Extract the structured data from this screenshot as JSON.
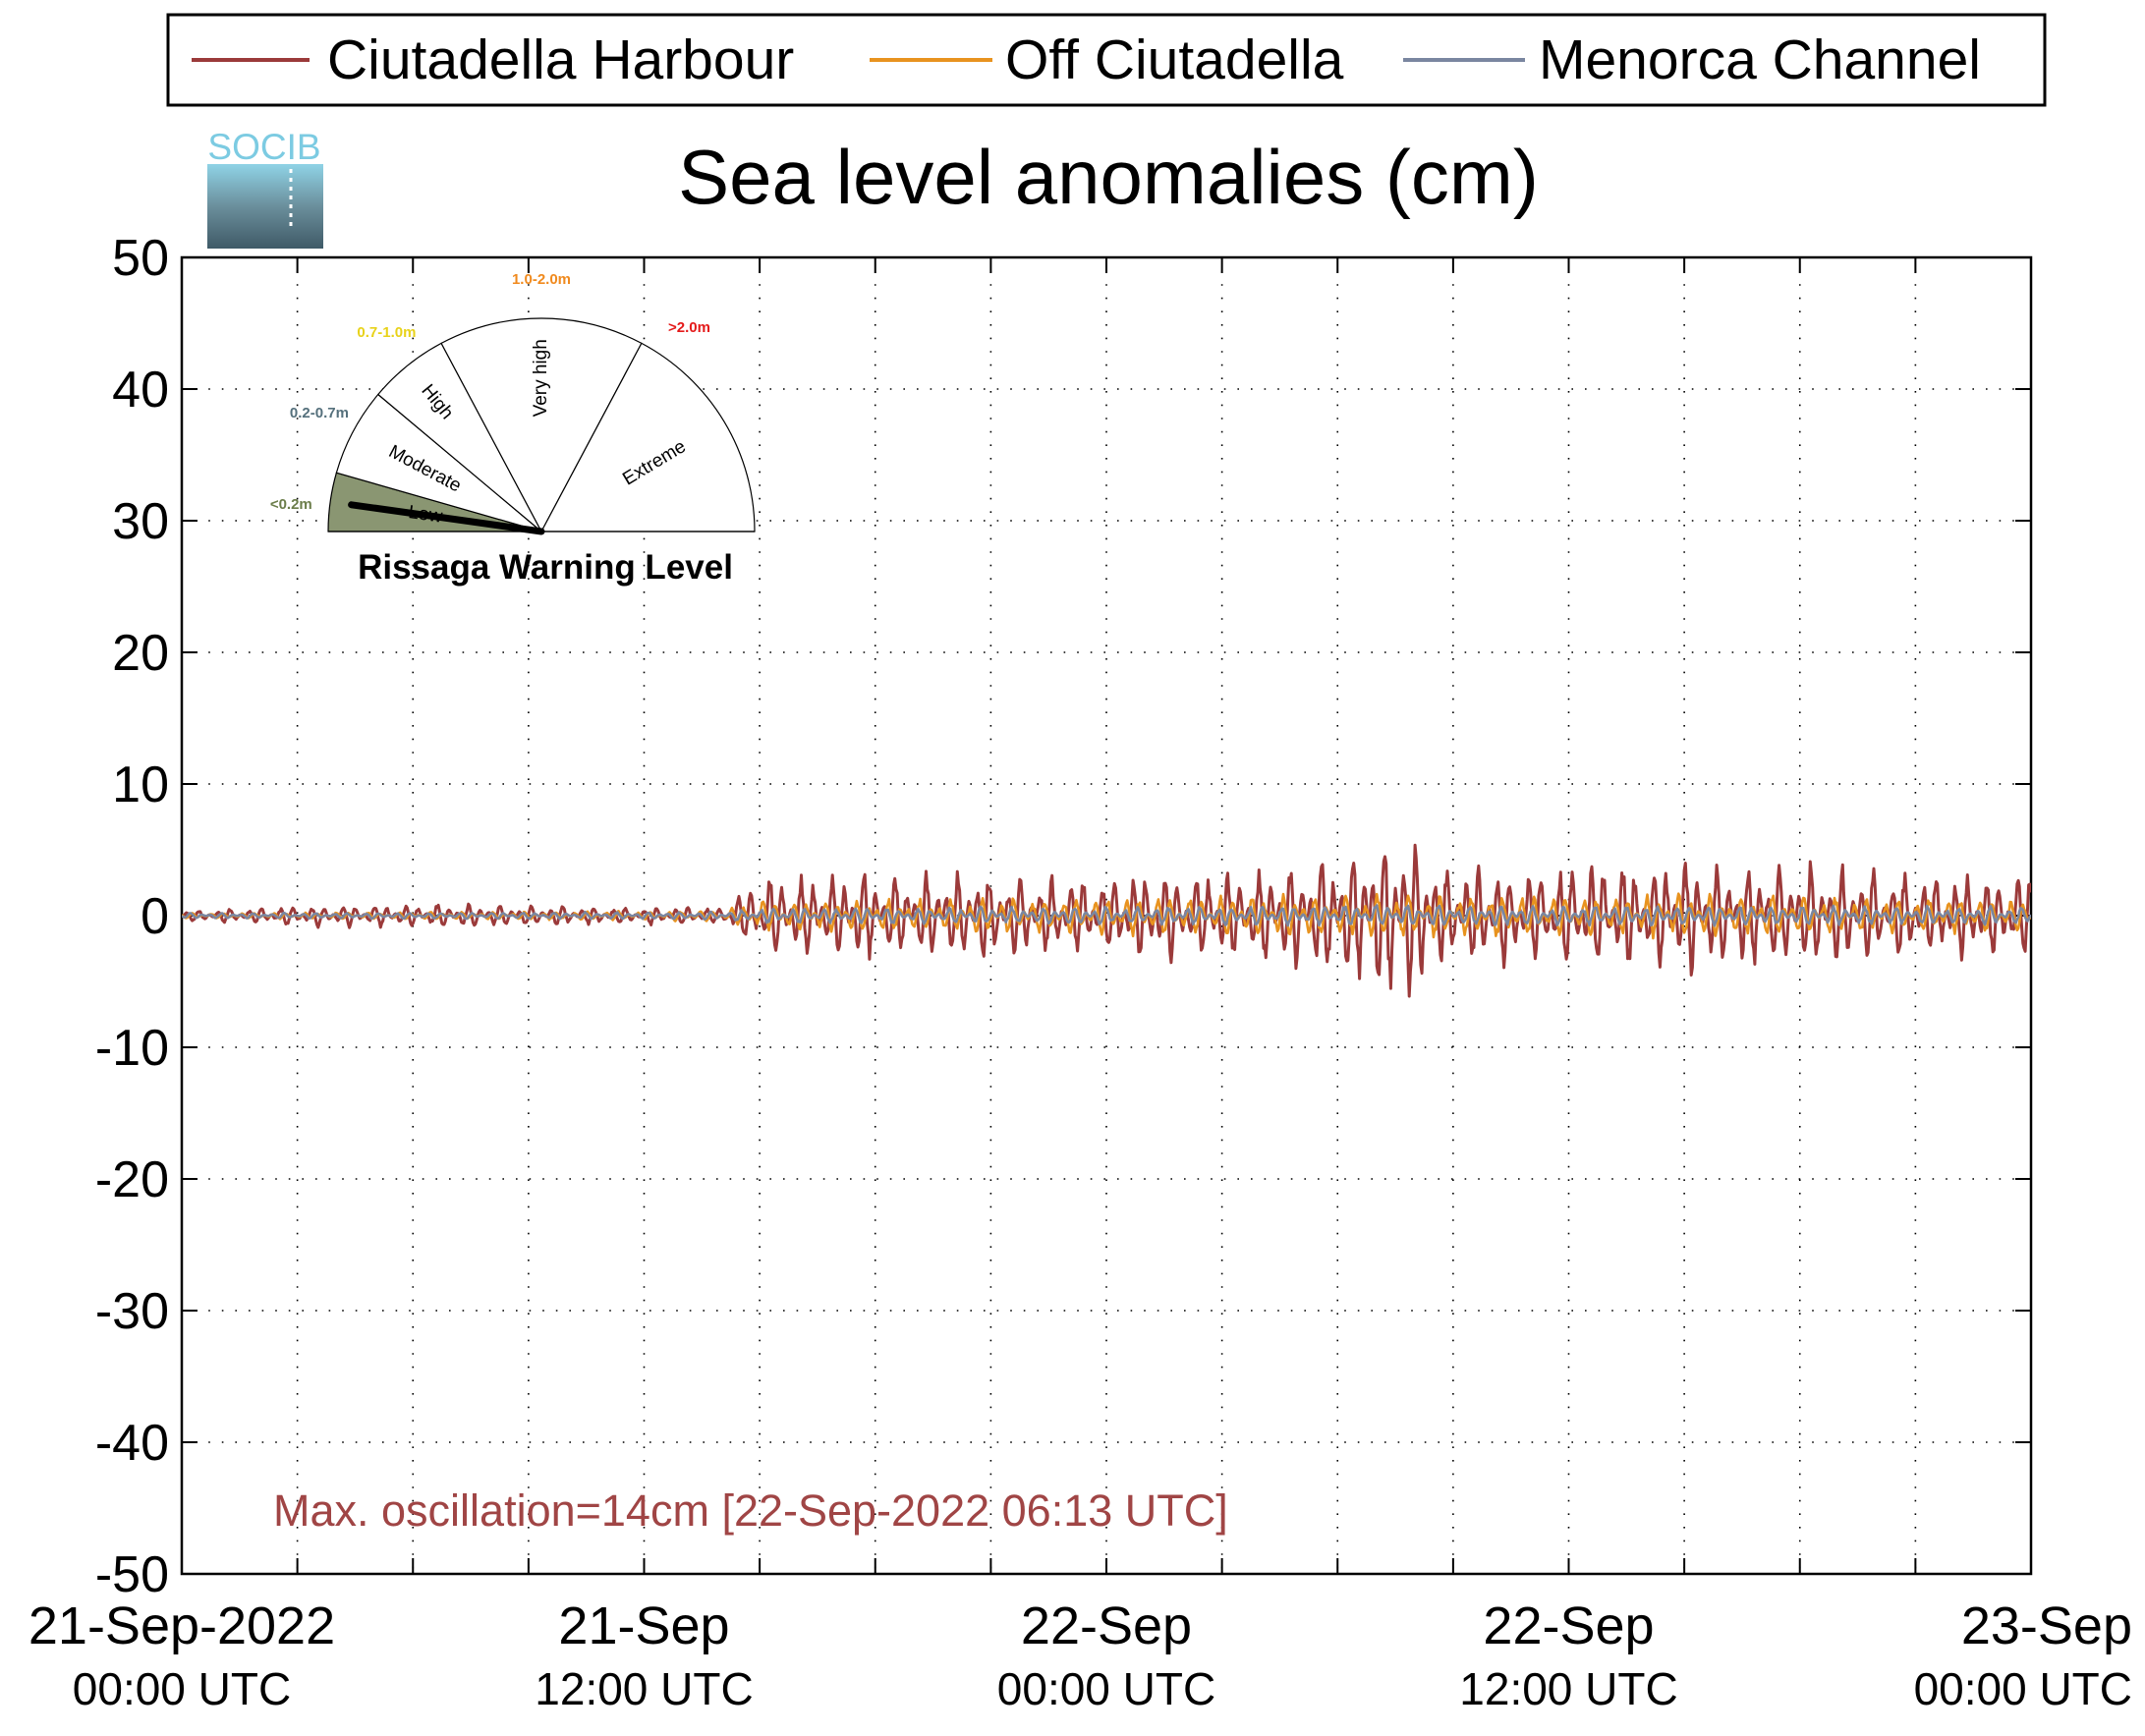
{
  "logo": {
    "text": "SOCIB"
  },
  "chart_data": {
    "type": "line",
    "title": "Sea level anomalies (cm)",
    "xlabel": "",
    "ylabel": "",
    "ylim": [
      -50,
      50
    ],
    "yticks": [
      50,
      40,
      30,
      20,
      10,
      0,
      -10,
      -20,
      -30,
      -40,
      -50
    ],
    "yticks_text": [
      "50",
      "40",
      "30",
      "20",
      "10",
      "0",
      "-10",
      "-20",
      "-30",
      "-40",
      "-50"
    ],
    "x_range_hours": [
      0,
      48
    ],
    "x_start": "21-Sep-2022 00:00 UTC",
    "xticks": [
      {
        "hour": 0,
        "line1": "21-Sep-2022",
        "line2": "00:00 UTC"
      },
      {
        "hour": 12,
        "line1": "21-Sep",
        "line2": "12:00 UTC"
      },
      {
        "hour": 24,
        "line1": "22-Sep",
        "line2": "00:00 UTC"
      },
      {
        "hour": 36,
        "line1": "22-Sep",
        "line2": "12:00 UTC"
      },
      {
        "hour": 48,
        "line1": "23-Sep",
        "line2": "00:00 UTC"
      }
    ],
    "grid": true,
    "legend_position": "top",
    "series": [
      {
        "name": "Ciutadella Harbour",
        "color": "#9b3a3a",
        "envelope": [
          [
            0,
            0.4
          ],
          [
            3,
            0.8
          ],
          [
            6,
            0.9
          ],
          [
            9,
            0.8
          ],
          [
            12,
            0.7
          ],
          [
            14,
            0.6
          ],
          [
            15,
            3.2
          ],
          [
            17,
            3.4
          ],
          [
            19,
            3.3
          ],
          [
            21,
            3.6
          ],
          [
            22.5,
            3.1
          ],
          [
            24,
            3.4
          ],
          [
            26,
            3.6
          ],
          [
            27.5,
            3.5
          ],
          [
            29,
            4.2
          ],
          [
            30,
            5.1
          ],
          [
            31,
            6.2
          ],
          [
            31.5,
            7.2
          ],
          [
            32,
            6.8
          ],
          [
            32.5,
            4.2
          ],
          [
            33,
            3.9
          ],
          [
            35,
            3.8
          ],
          [
            36,
            4.1
          ],
          [
            38,
            4.4
          ],
          [
            40,
            4.3
          ],
          [
            42,
            3.9
          ],
          [
            44,
            3.6
          ],
          [
            46,
            3.4
          ],
          [
            48,
            3.3
          ]
        ]
      },
      {
        "name": "Off Ciutadella",
        "color": "#e8931f",
        "envelope": [
          [
            0,
            0.2
          ],
          [
            14,
            0.4
          ],
          [
            15,
            1.2
          ],
          [
            24,
            1.4
          ],
          [
            30,
            1.6
          ],
          [
            31.5,
            1.9
          ],
          [
            33,
            1.6
          ],
          [
            36,
            1.6
          ],
          [
            40,
            1.7
          ],
          [
            44,
            1.4
          ],
          [
            48,
            1.3
          ]
        ]
      },
      {
        "name": "Menorca Channel",
        "color": "#7a86a0",
        "envelope": [
          [
            0,
            0.2
          ],
          [
            14,
            0.3
          ],
          [
            15,
            0.6
          ],
          [
            24,
            0.7
          ],
          [
            30,
            0.8
          ],
          [
            31.5,
            0.9
          ],
          [
            36,
            0.8
          ],
          [
            48,
            0.7
          ]
        ]
      }
    ],
    "annotation": "Max. oscillation=14cm [22-Sep-2022 06:13 UTC]",
    "annotation_color": "#a04545"
  },
  "gauge": {
    "title": "Rissaga Warning Level",
    "needle_level": "Low",
    "sectors": [
      {
        "label": "Low",
        "range": "<0.2m",
        "range_color": "#6b7d4a",
        "fill": "#8a9672"
      },
      {
        "label": "Moderate",
        "range": "0.2-0.7m",
        "range_color": "#55707c",
        "fill": "#ffffff"
      },
      {
        "label": "High",
        "range": "0.7-1.0m",
        "range_color": "#e8d21a",
        "fill": "#ffffff"
      },
      {
        "label": "Very high",
        "range": "1.0-2.0m",
        "range_color": "#f08a1e",
        "fill": "#ffffff"
      },
      {
        "label": "Extreme",
        "range": ">2.0m",
        "range_color": "#e41a1a",
        "fill": "#ffffff"
      }
    ]
  }
}
